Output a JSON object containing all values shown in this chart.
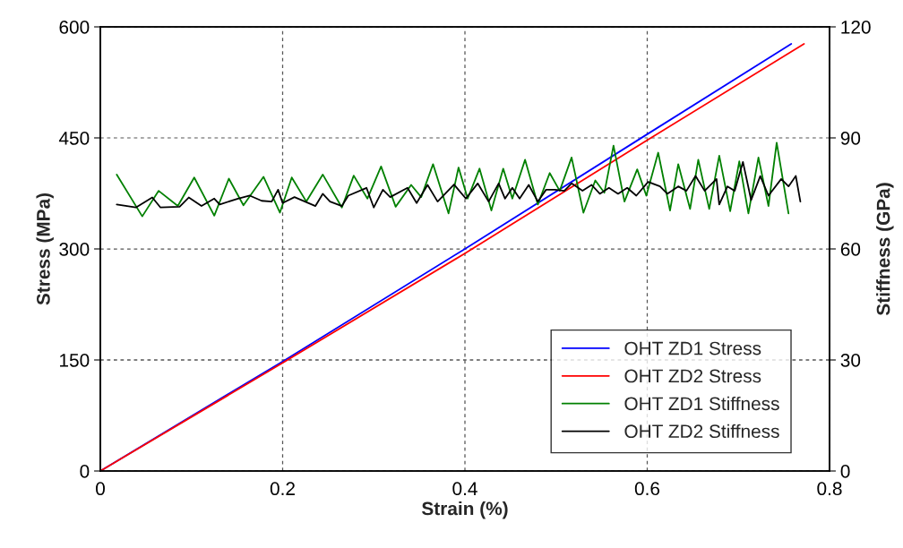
{
  "chart_data": {
    "type": "line",
    "xlabel": "Strain (%)",
    "ylabel": "Stress (MPa)",
    "y2label": "Stiffness (GPa)",
    "xlim": [
      0,
      0.8
    ],
    "xticks": [
      0,
      0.2,
      0.4,
      0.6,
      0.8
    ],
    "ylim": [
      0,
      600
    ],
    "yticks": [
      0,
      150,
      300,
      450,
      600
    ],
    "y2lim": [
      0,
      120
    ],
    "y2ticks": [
      0,
      30,
      60,
      90,
      120
    ],
    "grid": true,
    "legend": "bottom right",
    "series": [
      {
        "name": "OHT ZD1 Stress",
        "color": "#0000ff",
        "x": [
          0,
          0.2,
          0.4,
          0.6,
          0.758
        ],
        "values": [
          0,
          148,
          300,
          455,
          577
        ]
      },
      {
        "name": "OHT ZD2 Stress",
        "color": "#ff0000",
        "x": [
          0,
          0.2,
          0.4,
          0.6,
          0.772
        ],
        "values": [
          0,
          146,
          294,
          447,
          577
        ]
      },
      {
        "name": "OHT ZD1 Stiffness",
        "color": "#008000",
        "axis": "y2",
        "x": [
          0.018,
          0.046,
          0.064,
          0.085,
          0.103,
          0.125,
          0.141,
          0.157,
          0.179,
          0.197,
          0.21,
          0.226,
          0.244,
          0.265,
          0.278,
          0.293,
          0.308,
          0.324,
          0.341,
          0.352,
          0.365,
          0.382,
          0.393,
          0.403,
          0.416,
          0.429,
          0.442,
          0.452,
          0.466,
          0.48,
          0.493,
          0.504,
          0.517,
          0.53,
          0.543,
          0.553,
          0.563,
          0.575,
          0.589,
          0.599,
          0.612,
          0.625,
          0.634,
          0.647,
          0.656,
          0.668,
          0.679,
          0.691,
          0.701,
          0.711,
          0.722,
          0.733,
          0.742,
          0.755
        ],
        "values": [
          80.1,
          68.8,
          75.7,
          71.6,
          79.3,
          69.0,
          79.0,
          71.8,
          79.5,
          69.8,
          79.3,
          72.8,
          80.1,
          71.2,
          79.8,
          73.6,
          82.3,
          71.4,
          77.3,
          74.0,
          82.9,
          69.6,
          82.0,
          73.6,
          81.7,
          70.4,
          81.7,
          73.6,
          84.1,
          72.0,
          80.5,
          75.7,
          84.7,
          69.8,
          78.5,
          75.2,
          87.9,
          72.8,
          81.5,
          74.4,
          86.0,
          70.4,
          82.9,
          70.8,
          84.1,
          70.8,
          85.2,
          70.2,
          83.7,
          69.6,
          84.7,
          71.6,
          88.7,
          69.6
        ]
      },
      {
        "name": "OHT ZD2 Stiffness",
        "color": "#000000",
        "axis": "y2",
        "x": [
          0.018,
          0.039,
          0.057,
          0.066,
          0.087,
          0.097,
          0.111,
          0.125,
          0.131,
          0.151,
          0.164,
          0.177,
          0.188,
          0.195,
          0.2,
          0.213,
          0.236,
          0.244,
          0.252,
          0.265,
          0.272,
          0.292,
          0.3,
          0.31,
          0.318,
          0.337,
          0.347,
          0.359,
          0.37,
          0.388,
          0.401,
          0.414,
          0.426,
          0.437,
          0.444,
          0.452,
          0.46,
          0.47,
          0.48,
          0.489,
          0.499,
          0.509,
          0.517,
          0.529,
          0.539,
          0.548,
          0.558,
          0.568,
          0.578,
          0.588,
          0.601,
          0.614,
          0.622,
          0.634,
          0.643,
          0.653,
          0.663,
          0.676,
          0.679,
          0.688,
          0.696,
          0.705,
          0.714,
          0.724,
          0.733,
          0.747,
          0.755,
          0.763,
          0.768
        ],
        "values": [
          72.0,
          71.2,
          73.9,
          71.2,
          71.4,
          73.9,
          71.6,
          73.6,
          72.0,
          73.6,
          74.4,
          73.0,
          72.8,
          76.0,
          72.4,
          74.0,
          71.6,
          74.9,
          72.8,
          71.6,
          74.4,
          76.5,
          71.2,
          76.0,
          74.0,
          76.5,
          72.4,
          77.3,
          72.8,
          77.4,
          73.6,
          77.7,
          72.8,
          77.7,
          73.6,
          76.5,
          73.6,
          77.3,
          72.8,
          76.0,
          76.0,
          75.7,
          77.7,
          75.7,
          77.3,
          74.9,
          76.5,
          74.9,
          76.5,
          74.4,
          78.1,
          76.9,
          74.9,
          76.9,
          75.7,
          79.7,
          75.7,
          78.9,
          72.0,
          76.9,
          75.7,
          83.5,
          73.2,
          79.7,
          74.4,
          78.9,
          76.9,
          79.7,
          72.8
        ]
      }
    ]
  }
}
